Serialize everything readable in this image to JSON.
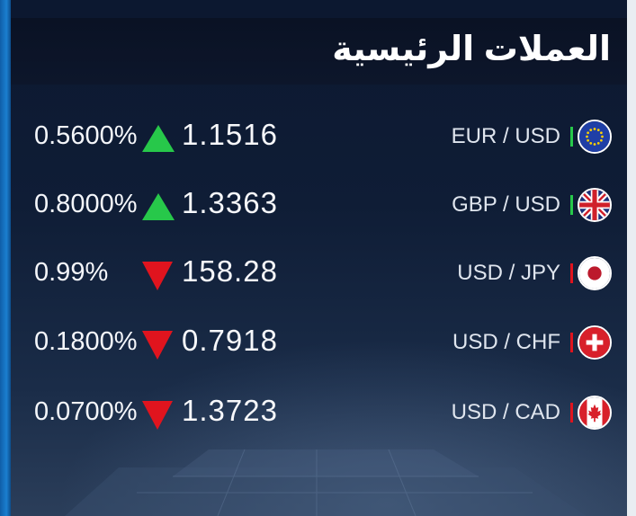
{
  "header": {
    "title": "العملات الرئيسية"
  },
  "rows": [
    {
      "percent": "0.5600%",
      "direction": "up",
      "rate": "1.1516",
      "pair": "EUR / USD",
      "flag_icon": "eu-flag-icon"
    },
    {
      "percent": "0.8000%",
      "direction": "up",
      "rate": "1.3363",
      "pair": "GBP / USD",
      "flag_icon": "uk-flag-icon"
    },
    {
      "percent": "0.99%",
      "direction": "down",
      "rate": "158.28",
      "pair": "USD / JPY",
      "flag_icon": "japan-flag-icon"
    },
    {
      "percent": "0.1800%",
      "direction": "down",
      "rate": "0.7918",
      "pair": "USD / CHF",
      "flag_icon": "switzerland-flag-icon"
    },
    {
      "percent": "0.0700%",
      "direction": "down",
      "rate": "1.3723",
      "pair": "USD / CAD",
      "flag_icon": "canada-flag-icon"
    }
  ],
  "colors": {
    "up": "#27c84a",
    "down": "#e0141e",
    "accent": "#1b7fd0",
    "header_bg": "#0a1224"
  }
}
